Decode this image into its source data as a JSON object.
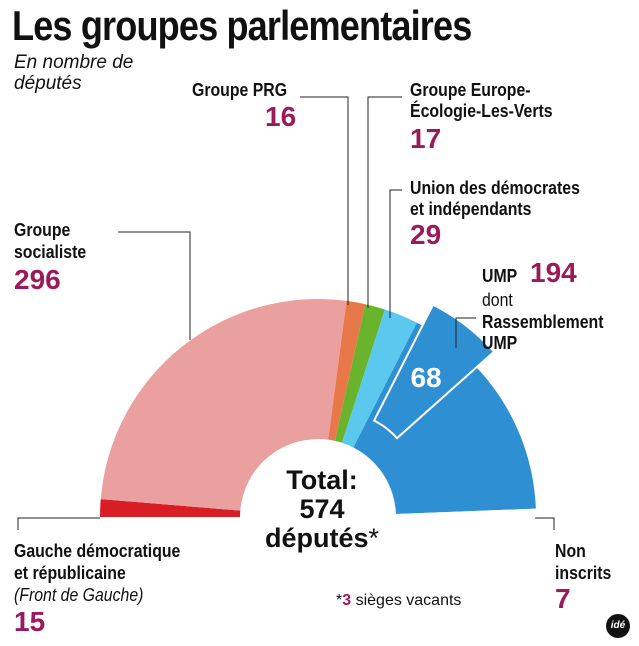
{
  "title": "Les groupes parlementaires",
  "subtitle": "En nombre de députés",
  "chart_data": {
    "type": "pie",
    "subtype": "parliament-semicircle",
    "title": "Les groupes parlementaires",
    "unit": "En nombre de députés",
    "total_value": 574,
    "segments": [
      {
        "name": "Gauche démocratique et républicaine",
        "subname": "(Front de Gauche)",
        "value": 15,
        "color": "#d81d24"
      },
      {
        "name": "Groupe socialiste",
        "value": 296,
        "color": "#eba0a0"
      },
      {
        "name": "Groupe PRG",
        "value": 16,
        "color": "#e8784a"
      },
      {
        "name": "Groupe Europe-Écologie-Les-Verts",
        "value": 17,
        "color": "#6ab42d"
      },
      {
        "name": "Union des démocrates et indépendants",
        "value": 29,
        "color": "#5bc8ee"
      },
      {
        "name": "UMP",
        "value": 194,
        "color": "#2e8fd3",
        "subgroup": {
          "name": "Rassemblement UMP",
          "value": 68
        }
      },
      {
        "name": "Non inscrits",
        "value": 7,
        "color": "#ffffff"
      }
    ]
  },
  "labels": {
    "gdr_name": "Gauche démocratique",
    "gdr_name2": "et républicaine",
    "gdr_sub": "(Front de Gauche)",
    "gdr_value": "15",
    "ps_name": "Groupe",
    "ps_name2": "socialiste",
    "ps_value": "296",
    "prg_name": "Groupe PRG",
    "prg_value": "16",
    "eelv_name": "Groupe Europe-",
    "eelv_name2": "Écologie-Les-Verts",
    "eelv_value": "17",
    "udi_name": "Union des démocrates",
    "udi_name2": "et indépendants",
    "udi_value": "29",
    "ump_name": "UMP",
    "ump_value": "194",
    "ump_dont": "dont",
    "rump_name": "Rassemblement",
    "rump_name2": "UMP",
    "rump_value": "68",
    "ni_name": "Non",
    "ni_name2": "inscrits",
    "ni_value": "7"
  },
  "total": {
    "line1": "Total:",
    "line2": "574",
    "line3": "députés",
    "star": "*"
  },
  "note": {
    "star": "*",
    "count": "3",
    "text": " sièges vacants"
  },
  "logo": "idé"
}
